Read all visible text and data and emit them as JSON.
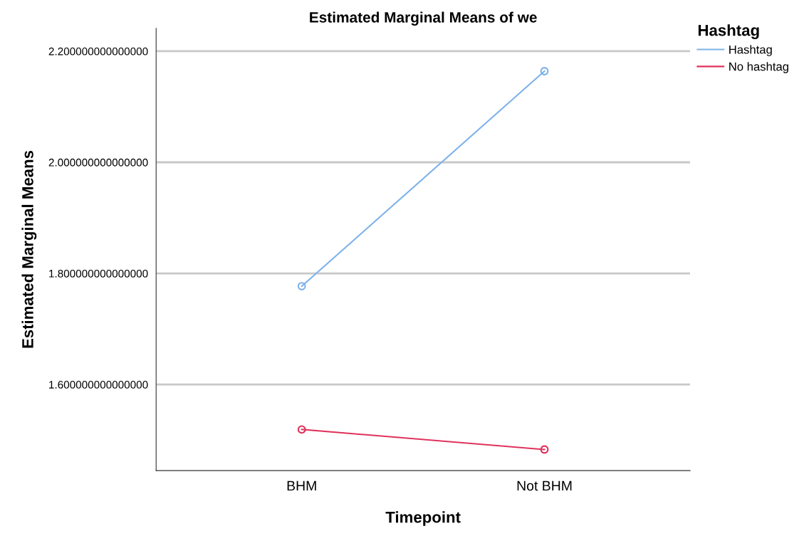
{
  "chart_data": {
    "type": "line",
    "title": "Estimated Marginal Means of we",
    "xlabel": "Timepoint",
    "ylabel": "Estimated Marginal Means",
    "legend_title": "Hashtag",
    "categories": [
      "BHM",
      "Not BHM"
    ],
    "series": [
      {
        "name": "Hashtag",
        "color": "#7eb2ea",
        "values": [
          1.777,
          2.164
        ]
      },
      {
        "name": "No hashtag",
        "color": "#e0325c",
        "values": [
          1.519,
          1.483
        ]
      }
    ],
    "ylim": [
      1.445,
      2.241
    ],
    "yticks": [
      {
        "value": 1.6,
        "label": "1.600000000000000"
      },
      {
        "value": 1.8,
        "label": "1.800000000000000"
      },
      {
        "value": 2.0,
        "label": "2.000000000000000"
      },
      {
        "value": 2.2,
        "label": "2.200000000000000"
      }
    ],
    "grid": "y",
    "legend": "top right",
    "marker": "circle",
    "line_style": "solid"
  }
}
